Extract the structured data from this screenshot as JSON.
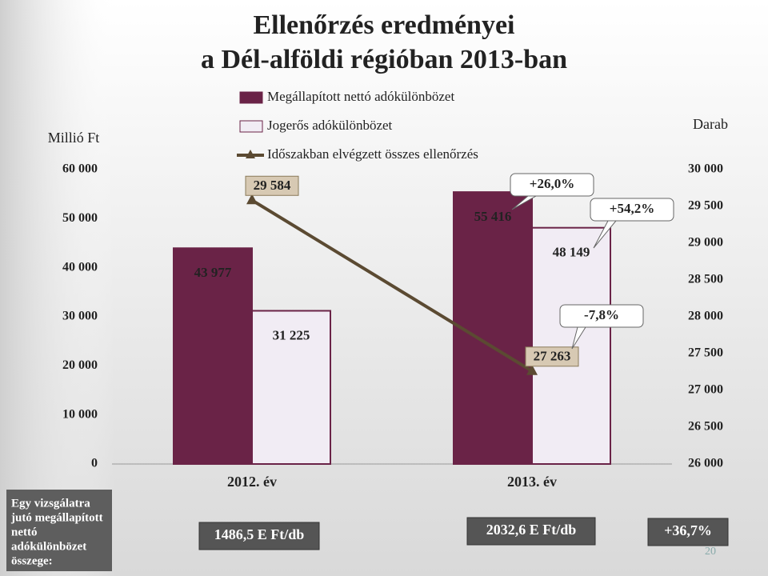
{
  "chart_data": {
    "type": "bar",
    "title": [
      "Ellenőrzés eredményei",
      "a Dél-alföldi régióban 2013-ban"
    ],
    "y_label": "Millió Ft",
    "y2_label": "Darab",
    "categories": [
      "2012. év",
      "2013. év"
    ],
    "series": [
      {
        "name": "Megállapított nettó adókülönbözet",
        "type": "bar",
        "color": "#6a2347",
        "values": [
          43977,
          55416
        ],
        "value_labels": [
          "43 977",
          "55 416"
        ]
      },
      {
        "name": "Jogerős adókülönbözet",
        "type": "bar",
        "color": "#f1ecf4",
        "values": [
          31225,
          48149
        ],
        "value_labels": [
          "31 225",
          "48 149"
        ]
      },
      {
        "name": "Időszakban elvégzett összes ellenőrzés",
        "type": "line",
        "axis": "y2",
        "color": "#5b4a32",
        "values": [
          29584,
          27263
        ],
        "value_labels": [
          "29 584",
          "27 263"
        ]
      }
    ],
    "ylim": [
      0,
      60000
    ],
    "yticks": [
      0,
      {
        "value": 10000,
        "label": "10 000"
      },
      {
        "value": 20000,
        "label": "20 000"
      },
      {
        "value": 30000,
        "label": "30 000"
      },
      {
        "value": 40000,
        "label": "40 000"
      },
      {
        "value": 50000,
        "label": "50 000"
      },
      {
        "value": 60000,
        "label": "60 000"
      }
    ],
    "y2lim": [
      26000,
      30000
    ],
    "y2ticks": [
      {
        "value": 26000,
        "label": "26 000"
      },
      {
        "value": 26500,
        "label": "26 500"
      },
      {
        "value": 27000,
        "label": "27 000"
      },
      {
        "value": 27500,
        "label": "27 500"
      },
      {
        "value": 28000,
        "label": "28 000"
      },
      {
        "value": 28500,
        "label": "28 500"
      },
      {
        "value": 29000,
        "label": "29 000"
      },
      {
        "value": 29500,
        "label": "29 500"
      },
      {
        "value": 30000,
        "label": "30 000"
      }
    ],
    "annotations": [
      "+26,0%",
      "+54,2%",
      "-7,8%"
    ]
  },
  "note": [
    "Egy vizsgálatra",
    "jutó megállapított",
    "nettó",
    "adókülönbözet",
    "összege:"
  ],
  "per_unit": [
    "1486,5 E Ft/db",
    "2032,6 E Ft/db"
  ],
  "per_unit_change": "+36,7%",
  "page_number": "20"
}
